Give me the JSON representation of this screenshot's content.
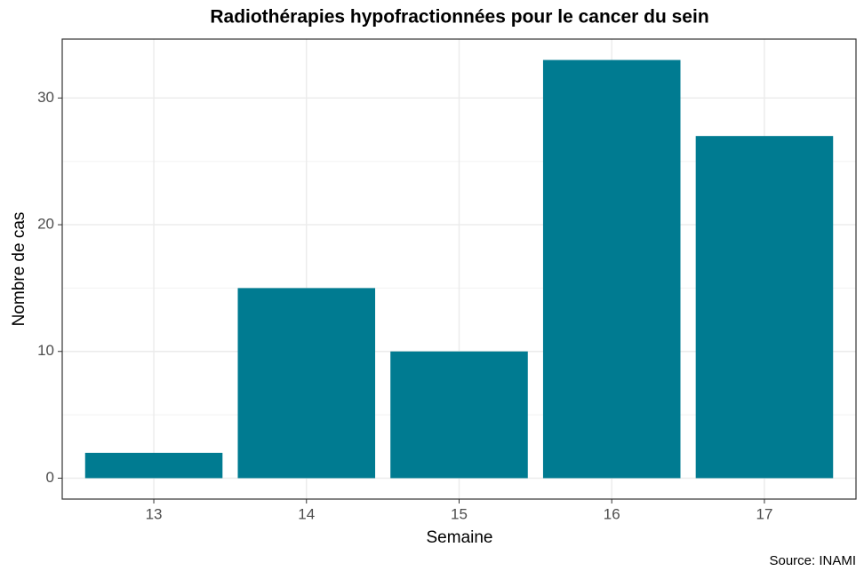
{
  "chart_data": {
    "type": "bar",
    "title": "Radiothérapies hypofractionnées pour le cancer du sein",
    "x_label": "Semaine",
    "y_label": "Nombre de cas",
    "caption": "Source: INAMI",
    "categories": [
      "13",
      "14",
      "15",
      "16",
      "17"
    ],
    "values": [
      2,
      15,
      10,
      33,
      27
    ],
    "color": "#007b91",
    "ylim": [
      -1.65,
      34.65
    ],
    "yticks": [
      0,
      10,
      20,
      30
    ],
    "y_minor_ticks": [
      5,
      15,
      25
    ],
    "grid": true
  }
}
